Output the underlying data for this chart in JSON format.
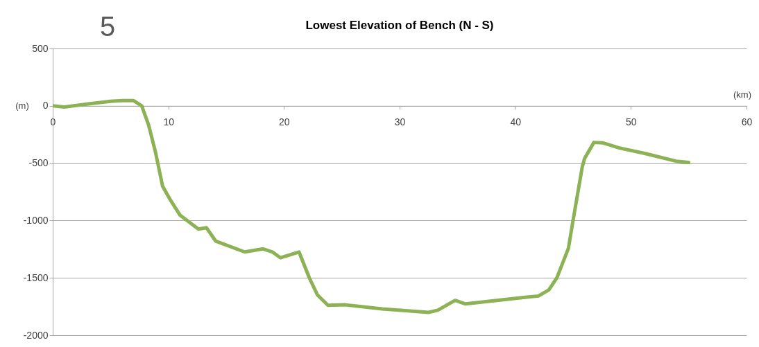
{
  "chart_data": {
    "type": "line",
    "title": "Lowest Elevation of Bench (N - S)",
    "annotations": [
      "5",
      "(m)",
      "(km)"
    ],
    "x": [
      0,
      1,
      3.2,
      5,
      6,
      7,
      7.7,
      8.3,
      8.9,
      9.5,
      10.2,
      11,
      12.6,
      13.3,
      14.1,
      16.6,
      18.2,
      19,
      19.7,
      21.3,
      22.2,
      22.9,
      23.8,
      25.3,
      28.5,
      32.5,
      33.3,
      34.8,
      35.7,
      40.3,
      42,
      42.9,
      43.6,
      44.6,
      45,
      45.8,
      46,
      46.8,
      47.6,
      49,
      51.2,
      53.9,
      55
    ],
    "series": [
      {
        "color": "#8db255",
        "values": [
          0,
          -10,
          18,
          40,
          45,
          45,
          0,
          -170,
          -410,
          -700,
          -825,
          -952,
          -1075,
          -1063,
          -1180,
          -1274,
          -1247,
          -1274,
          -1325,
          -1274,
          -1502,
          -1650,
          -1739,
          -1735,
          -1771,
          -1801,
          -1782,
          -1696,
          -1727,
          -1675,
          -1658,
          -1605,
          -1499,
          -1241,
          -998,
          -530,
          -458,
          -319,
          -323,
          -367,
          -415,
          -482,
          -494
        ]
      }
    ],
    "xlim": [
      0,
      60
    ],
    "xticks": [
      0,
      10,
      20,
      30,
      40,
      50,
      60
    ],
    "ylim": [
      -2000,
      500
    ],
    "yticks": [
      -2000,
      -1500,
      -1000,
      -500,
      0,
      500
    ],
    "grid": "y",
    "marker": "none",
    "line_style": "solid"
  }
}
